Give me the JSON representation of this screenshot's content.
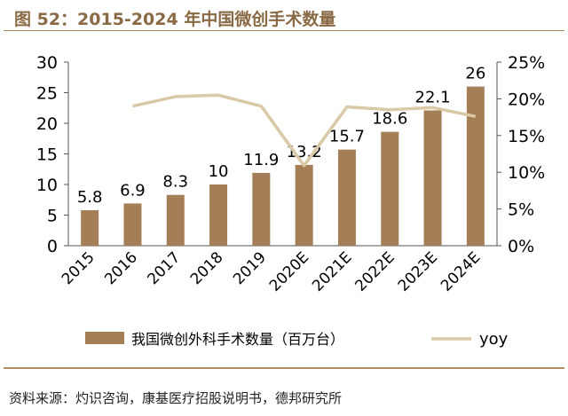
{
  "header": {
    "title": "图 52：2015-2024 年中国微创手术数量"
  },
  "footer": {
    "source": "资料来源：灼识咨询，康基医疗招股说明书，德邦研究所"
  },
  "colors": {
    "bar": "#a37e57",
    "line": "#d9c9a6",
    "accent": "#8a6a45",
    "rule": "#b08d63"
  },
  "chart_data": {
    "type": "bar",
    "title": "2015-2024 年中国微创手术数量",
    "categories": [
      "2015",
      "2016",
      "2017",
      "2018",
      "2019",
      "2020E",
      "2021E",
      "2022E",
      "2023E",
      "2024E"
    ],
    "series": [
      {
        "name": "我国微创外科手术数量（百万台）",
        "type": "bar",
        "axis": "left",
        "values": [
          5.8,
          6.9,
          8.3,
          10,
          11.9,
          13.2,
          15.7,
          18.6,
          22.1,
          26
        ],
        "labels": [
          "5.8",
          "6.9",
          "8.3",
          "10",
          "11.9",
          "13.2",
          "15.7",
          "18.6",
          "22.1",
          "26"
        ]
      },
      {
        "name": "yoy",
        "type": "line",
        "axis": "right",
        "values": [
          null,
          19.0,
          20.3,
          20.5,
          19.0,
          10.9,
          18.9,
          18.5,
          18.8,
          17.6
        ]
      }
    ],
    "y_left": {
      "min": 0,
      "max": 30,
      "ticks": [
        0,
        5,
        10,
        15,
        20,
        25,
        30
      ],
      "tick_labels": [
        "0",
        "5",
        "10",
        "15",
        "20",
        "25",
        "30"
      ]
    },
    "y_right": {
      "min": 0,
      "max": 25,
      "ticks": [
        0,
        5,
        10,
        15,
        20,
        25
      ],
      "tick_labels": [
        "0%",
        "5%",
        "10%",
        "15%",
        "20%",
        "25%"
      ]
    },
    "legend": {
      "position": "bottom",
      "items": [
        "我国微创外科手术数量（百万台）",
        "yoy"
      ]
    },
    "xlabel": "",
    "ylabel": ""
  }
}
